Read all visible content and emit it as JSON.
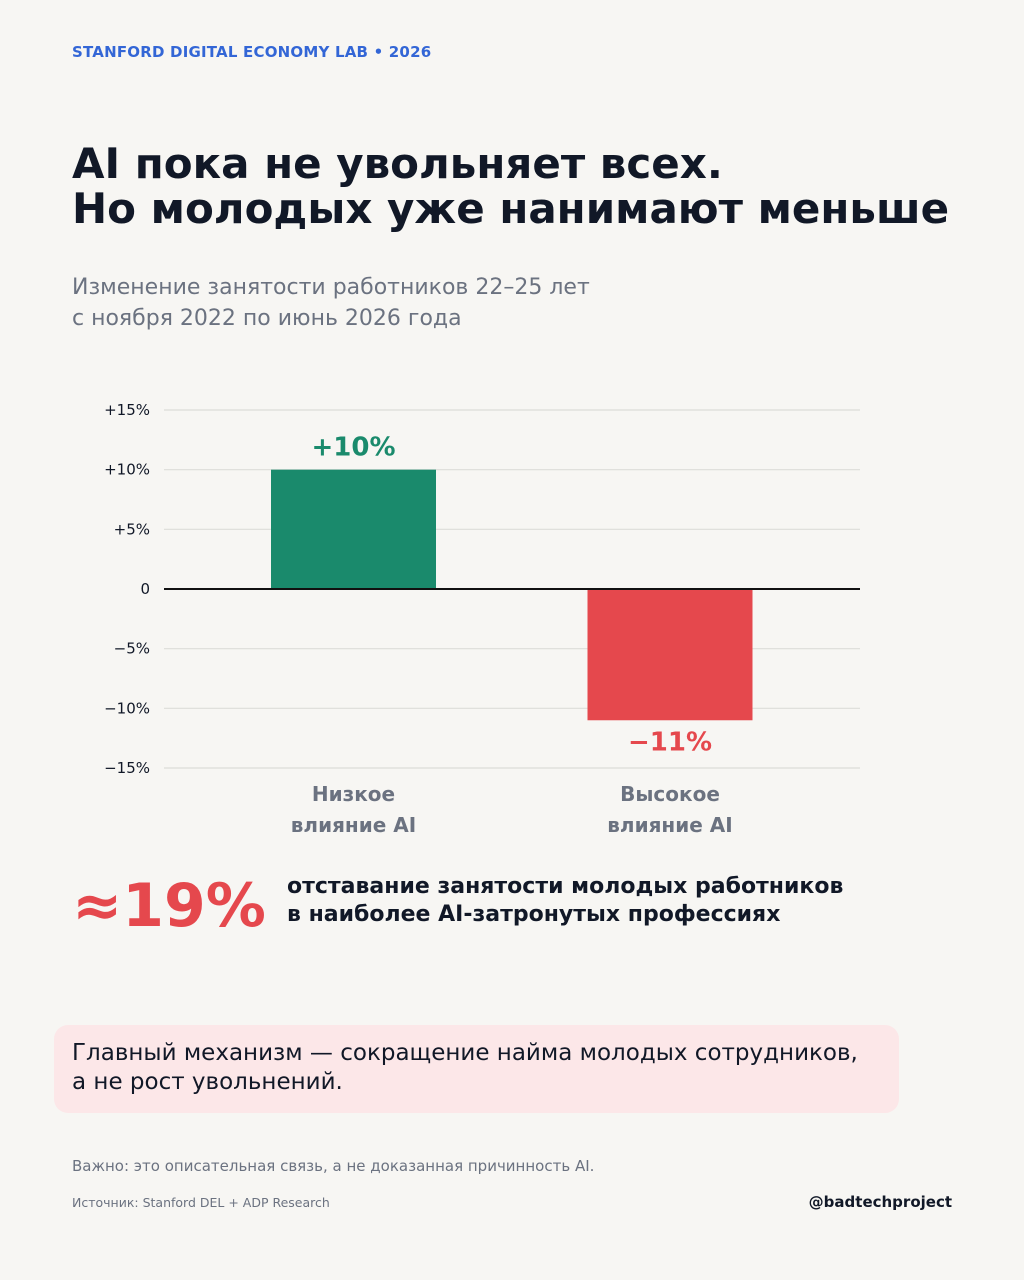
{
  "header": {
    "overline": "STANFORD DIGITAL ECONOMY LAB • 2026",
    "title_lines": [
      "AI пока не увольняет всех.",
      "Но молодых уже нанимают меньше"
    ],
    "subtitle_lines": [
      "Изменение занятости работников 22–25 лет",
      "с ноября 2022 по июнь 2026 года"
    ]
  },
  "chart_data": {
    "type": "bar",
    "categories": [
      [
        "Низкое",
        "влияние AI"
      ],
      [
        "Высокое",
        "влияние AI"
      ]
    ],
    "values": [
      10,
      -11
    ],
    "data_labels": [
      "+10%",
      "−11%"
    ],
    "colors": [
      "#1a8a6c",
      "#e5484d"
    ],
    "ylim": [
      -15,
      15
    ],
    "yticks": [
      15,
      10,
      5,
      0,
      -5,
      -10,
      -15
    ],
    "ytick_labels": [
      "+15%",
      "+10%",
      "+5%",
      "0",
      "−5%",
      "−10%",
      "−15%"
    ],
    "grid": true,
    "title": "",
    "xlabel": "",
    "ylabel": ""
  },
  "highlight": {
    "stat": "≈19%",
    "desc_lines": [
      "отставание занятости молодых работников",
      "в наиболее AI-затронутых профессиях"
    ]
  },
  "callout": {
    "lines": [
      "Главный механизм — сокращение найма молодых сотрудников,",
      "а не рост увольнений."
    ]
  },
  "footer": {
    "note": "Важно: это описательная связь, а не доказанная причинность AI.",
    "source": "Источник: Stanford DEL + ADP Research",
    "handle": "@badtechproject"
  }
}
